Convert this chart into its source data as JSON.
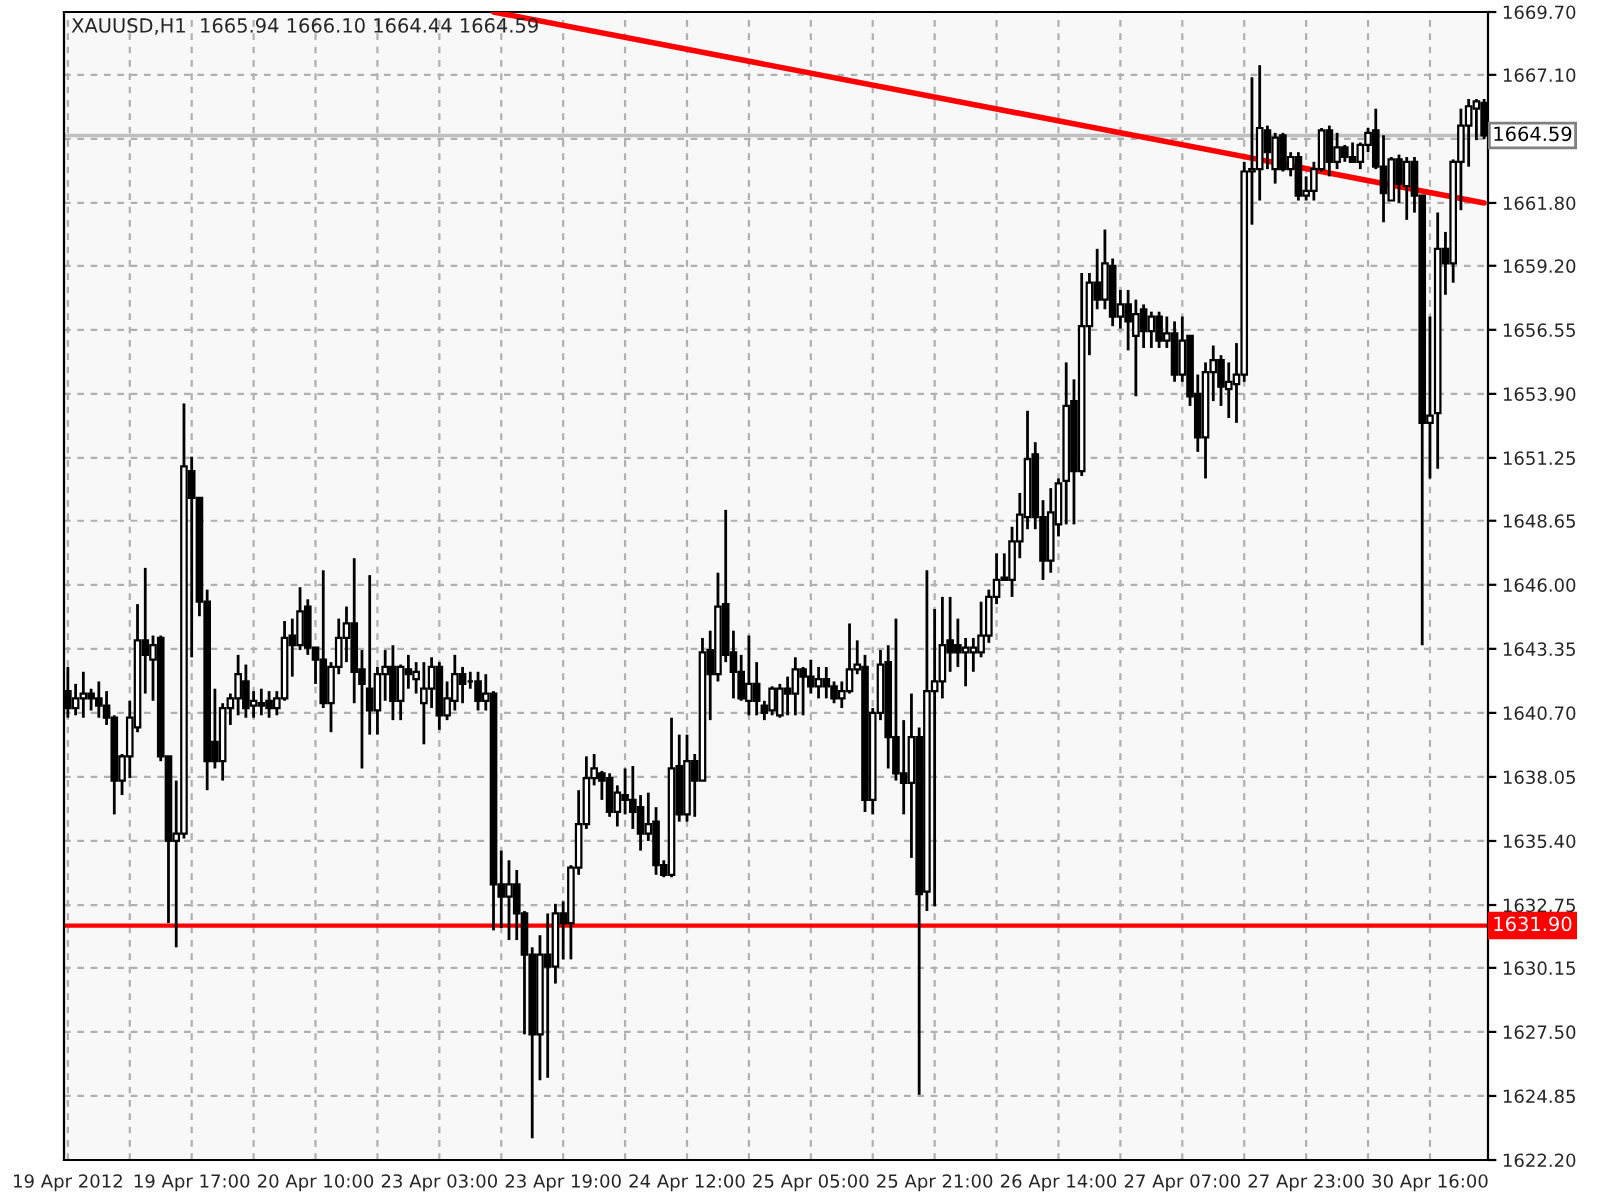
{
  "chart_data": {
    "type": "candlestick",
    "title": "XAUUSD,H1  1665.94 1666.10 1664.44 1664.59",
    "categories": [
      "19 Apr 2012",
      null,
      null,
      null,
      null,
      null,
      null,
      null,
      null,
      null,
      null,
      null,
      null,
      null,
      null,
      null,
      "19 Apr 17:00",
      null,
      null,
      null,
      null,
      null,
      null,
      null,
      null,
      null,
      null,
      null,
      null,
      null,
      null,
      null,
      "20 Apr 10:00",
      null,
      null,
      null,
      null,
      null,
      null,
      null,
      null,
      null,
      null,
      null,
      null,
      null,
      null,
      null,
      "23 Apr 03:00",
      null,
      null,
      null,
      null,
      null,
      null,
      null,
      null,
      null,
      null,
      null,
      null,
      null,
      null,
      null,
      "23 Apr 19:00",
      null,
      null,
      null,
      null,
      null,
      null,
      null,
      null,
      null,
      null,
      null,
      null,
      null,
      null,
      null,
      "24 Apr 12:00",
      null,
      null,
      null,
      null,
      null,
      null,
      null,
      null,
      null,
      null,
      null,
      null,
      null,
      null,
      null,
      "25 Apr 05:00",
      null,
      null,
      null,
      null,
      null,
      null,
      null,
      null,
      null,
      null,
      null,
      null,
      null,
      null,
      null,
      "25 Apr 21:00",
      null,
      null,
      null,
      null,
      null,
      null,
      null,
      null,
      null,
      null,
      null,
      null,
      null,
      null,
      null,
      "26 Apr 14:00",
      null,
      null,
      null,
      null,
      null,
      null,
      null,
      null,
      null,
      null,
      null,
      null,
      null,
      null,
      null,
      "27 Apr 07:00",
      null,
      null,
      null,
      null,
      null,
      null,
      null,
      null,
      null,
      null,
      null,
      null,
      null,
      null,
      null,
      "27 Apr 23:00",
      null,
      null,
      null,
      null,
      null,
      null,
      null,
      null,
      null,
      null,
      null,
      null,
      null,
      null,
      null,
      "30 Apr 16:00",
      null,
      null,
      null,
      null,
      null,
      null,
      null
    ],
    "ohlc": [
      [
        1641.6,
        1642.6,
        1640.5,
        1640.9
      ],
      [
        1640.9,
        1641.9,
        1640.6,
        1641.3
      ],
      [
        1641.3,
        1642.4,
        1640.5,
        1641.5
      ],
      [
        1641.5,
        1641.7,
        1640.8,
        1641.3
      ],
      [
        1641.3,
        1642.0,
        1640.5,
        1641.0
      ],
      [
        1641.0,
        1641.6,
        1640.2,
        1640.5
      ],
      [
        1640.5,
        1640.6,
        1636.5,
        1637.9
      ],
      [
        1637.9,
        1639.0,
        1637.3,
        1638.9
      ],
      [
        1638.9,
        1641.2,
        1638.0,
        1640.5
      ],
      [
        1640.1,
        1645.2,
        1639.9,
        1643.7
      ],
      [
        1643.7,
        1646.7,
        1641.5,
        1643.1
      ],
      [
        1642.9,
        1643.9,
        1641.2,
        1643.5
      ],
      [
        1643.8,
        1643.9,
        1638.7,
        1638.9
      ],
      [
        1638.9,
        1638.9,
        1632.0,
        1635.4
      ],
      [
        1635.4,
        1637.9,
        1631.0,
        1635.7
      ],
      [
        1635.7,
        1653.5,
        1635.5,
        1650.9
      ],
      [
        1650.7,
        1651.3,
        1643.0,
        1649.6
      ],
      [
        1649.6,
        1649.6,
        1644.7,
        1645.3
      ],
      [
        1645.3,
        1645.8,
        1637.5,
        1638.7
      ],
      [
        1639.5,
        1641.7,
        1638.4,
        1638.7
      ],
      [
        1638.7,
        1641.1,
        1637.9,
        1640.9
      ],
      [
        1640.9,
        1641.5,
        1640.2,
        1641.3
      ],
      [
        1641.3,
        1643.1,
        1640.6,
        1642.3
      ],
      [
        1642.0,
        1642.7,
        1640.5,
        1640.9
      ],
      [
        1641.0,
        1641.6,
        1640.5,
        1641.2
      ],
      [
        1641.1,
        1641.7,
        1640.6,
        1641.0
      ],
      [
        1641.2,
        1641.6,
        1640.5,
        1640.9
      ],
      [
        1640.9,
        1641.6,
        1640.6,
        1641.3
      ],
      [
        1641.3,
        1644.5,
        1641.2,
        1643.8
      ],
      [
        1643.9,
        1644.6,
        1642.2,
        1643.5
      ],
      [
        1643.5,
        1645.9,
        1643.3,
        1644.9
      ],
      [
        1645.1,
        1645.4,
        1643.1,
        1643.4
      ],
      [
        1643.4,
        1643.4,
        1641.9,
        1642.9
      ],
      [
        1642.9,
        1646.6,
        1640.9,
        1641.1
      ],
      [
        1641.1,
        1642.8,
        1639.9,
        1642.6
      ],
      [
        1642.6,
        1644.6,
        1642.3,
        1643.8
      ],
      [
        1643.8,
        1645.1,
        1642.8,
        1644.4
      ],
      [
        1644.4,
        1647.1,
        1641.1,
        1642.4
      ],
      [
        1642.5,
        1643.3,
        1638.4,
        1641.9
      ],
      [
        1641.7,
        1646.4,
        1639.8,
        1640.8
      ],
      [
        1640.8,
        1642.6,
        1639.8,
        1642.3
      ],
      [
        1642.3,
        1643.3,
        1641.2,
        1642.6
      ],
      [
        1642.6,
        1643.5,
        1640.4,
        1641.2
      ],
      [
        1641.2,
        1642.7,
        1640.4,
        1642.6
      ],
      [
        1642.5,
        1643.1,
        1641.7,
        1642.3
      ],
      [
        1642.1,
        1642.8,
        1641.5,
        1642.4
      ],
      [
        1641.1,
        1642.8,
        1639.4,
        1641.7
      ],
      [
        1641.7,
        1643.0,
        1640.9,
        1642.6
      ],
      [
        1642.6,
        1642.8,
        1640.0,
        1640.6
      ],
      [
        1640.6,
        1642.0,
        1640.4,
        1641.3
      ],
      [
        1641.2,
        1643.1,
        1640.8,
        1642.3
      ],
      [
        1642.3,
        1642.6,
        1641.1,
        1641.9
      ],
      [
        1642.0,
        1642.4,
        1641.7,
        1642.0
      ],
      [
        1642.0,
        1642.4,
        1640.8,
        1641.2
      ],
      [
        1641.2,
        1642.3,
        1640.8,
        1641.5
      ],
      [
        1641.5,
        1641.6,
        1631.7,
        1633.6
      ],
      [
        1633.6,
        1635.0,
        1631.8,
        1633.1
      ],
      [
        1633.1,
        1634.6,
        1631.3,
        1633.6
      ],
      [
        1633.6,
        1634.2,
        1631.3,
        1632.4
      ],
      [
        1632.4,
        1632.5,
        1627.4,
        1630.7
      ],
      [
        1630.7,
        1631.0,
        1623.1,
        1627.4
      ],
      [
        1627.4,
        1631.5,
        1625.5,
        1630.7
      ],
      [
        1630.7,
        1632.4,
        1625.6,
        1630.2
      ],
      [
        1630.2,
        1632.8,
        1629.5,
        1632.4
      ],
      [
        1632.4,
        1632.9,
        1630.5,
        1632.0
      ],
      [
        1632.0,
        1634.4,
        1630.5,
        1634.3
      ],
      [
        1634.3,
        1637.5,
        1634.0,
        1636.1
      ],
      [
        1636.1,
        1638.9,
        1635.9,
        1638.0
      ],
      [
        1638.0,
        1639.0,
        1637.7,
        1638.4
      ],
      [
        1638.2,
        1638.3,
        1637.1,
        1637.9
      ],
      [
        1638.0,
        1638.2,
        1636.4,
        1636.6
      ],
      [
        1636.6,
        1637.7,
        1636.0,
        1637.4
      ],
      [
        1637.3,
        1638.4,
        1636.5,
        1637.1
      ],
      [
        1637.1,
        1638.5,
        1635.9,
        1636.6
      ],
      [
        1636.8,
        1637.3,
        1635.0,
        1635.7
      ],
      [
        1635.7,
        1637.4,
        1635.4,
        1636.1
      ],
      [
        1636.2,
        1636.8,
        1634.0,
        1634.4
      ],
      [
        1634.4,
        1634.6,
        1633.9,
        1634.0
      ],
      [
        1634.0,
        1640.5,
        1633.9,
        1638.4
      ],
      [
        1638.5,
        1639.8,
        1636.2,
        1636.5
      ],
      [
        1636.5,
        1639.8,
        1636.2,
        1638.7
      ],
      [
        1638.7,
        1639.0,
        1636.4,
        1637.9
      ],
      [
        1637.9,
        1643.8,
        1637.9,
        1643.2
      ],
      [
        1643.3,
        1644.1,
        1640.4,
        1642.3
      ],
      [
        1642.3,
        1646.5,
        1642.0,
        1645.1
      ],
      [
        1645.2,
        1649.1,
        1642.8,
        1643.1
      ],
      [
        1643.2,
        1644.1,
        1641.3,
        1642.4
      ],
      [
        1642.4,
        1643.1,
        1641.2,
        1641.3
      ],
      [
        1641.2,
        1643.9,
        1640.6,
        1641.9
      ],
      [
        1641.9,
        1642.8,
        1640.6,
        1641.2
      ],
      [
        1641.0,
        1641.2,
        1640.4,
        1640.7
      ],
      [
        1640.8,
        1641.8,
        1640.6,
        1641.7
      ],
      [
        1640.6,
        1641.9,
        1640.5,
        1641.7
      ],
      [
        1641.7,
        1642.2,
        1640.6,
        1641.5
      ],
      [
        1641.5,
        1643.0,
        1640.6,
        1642.5
      ],
      [
        1642.5,
        1642.6,
        1640.6,
        1642.2
      ],
      [
        1642.2,
        1642.9,
        1641.5,
        1641.8
      ],
      [
        1641.8,
        1642.6,
        1641.3,
        1642.1
      ],
      [
        1642.1,
        1642.6,
        1641.3,
        1641.8
      ],
      [
        1641.8,
        1642.0,
        1641.1,
        1641.3
      ],
      [
        1641.3,
        1642.0,
        1640.9,
        1641.6
      ],
      [
        1641.6,
        1644.4,
        1641.5,
        1642.5
      ],
      [
        1642.5,
        1643.7,
        1642.3,
        1642.7
      ],
      [
        1642.6,
        1643.1,
        1636.6,
        1637.1
      ],
      [
        1637.1,
        1640.9,
        1636.5,
        1640.7
      ],
      [
        1640.7,
        1643.3,
        1640.4,
        1642.7
      ],
      [
        1642.8,
        1643.5,
        1638.4,
        1639.7
      ],
      [
        1639.7,
        1644.6,
        1637.9,
        1638.2
      ],
      [
        1638.2,
        1640.4,
        1636.5,
        1637.8
      ],
      [
        1637.8,
        1641.5,
        1634.7,
        1639.7
      ],
      [
        1639.7,
        1640.1,
        1624.9,
        1633.2
      ],
      [
        1633.3,
        1646.6,
        1632.5,
        1641.6
      ],
      [
        1641.6,
        1645.0,
        1632.7,
        1642.0
      ],
      [
        1642.0,
        1645.5,
        1641.3,
        1643.5
      ],
      [
        1643.7,
        1645.5,
        1642.4,
        1643.2
      ],
      [
        1643.5,
        1644.6,
        1642.6,
        1643.2
      ],
      [
        1643.2,
        1643.8,
        1641.8,
        1643.4
      ],
      [
        1643.2,
        1643.8,
        1642.4,
        1643.4
      ],
      [
        1643.2,
        1645.3,
        1643.0,
        1643.9
      ],
      [
        1643.9,
        1645.8,
        1643.6,
        1645.5
      ],
      [
        1645.5,
        1647.3,
        1645.2,
        1646.2
      ],
      [
        1646.2,
        1647.3,
        1646.2,
        1646.3
      ],
      [
        1646.2,
        1648.4,
        1645.5,
        1647.8
      ],
      [
        1647.8,
        1649.8,
        1647.1,
        1648.9
      ],
      [
        1648.8,
        1653.2,
        1648.3,
        1651.2
      ],
      [
        1651.4,
        1651.9,
        1648.3,
        1648.8
      ],
      [
        1648.8,
        1649.5,
        1646.2,
        1647.0
      ],
      [
        1647.0,
        1650.0,
        1646.5,
        1649.0
      ],
      [
        1648.5,
        1650.4,
        1648.0,
        1650.2
      ],
      [
        1650.3,
        1655.2,
        1648.5,
        1653.4
      ],
      [
        1653.6,
        1654.5,
        1648.5,
        1650.7
      ],
      [
        1650.7,
        1658.9,
        1650.5,
        1656.7
      ],
      [
        1656.7,
        1658.9,
        1655.5,
        1658.5
      ],
      [
        1658.5,
        1659.9,
        1657.4,
        1657.8
      ],
      [
        1657.8,
        1660.7,
        1657.4,
        1659.3
      ],
      [
        1659.2,
        1659.5,
        1656.7,
        1657.1
      ],
      [
        1657.1,
        1658.2,
        1656.6,
        1657.6
      ],
      [
        1657.6,
        1658.2,
        1655.7,
        1656.9
      ],
      [
        1656.3,
        1657.8,
        1653.8,
        1657.2
      ],
      [
        1657.4,
        1657.6,
        1655.8,
        1656.5
      ],
      [
        1656.5,
        1657.3,
        1655.8,
        1657.1
      ],
      [
        1657.1,
        1657.3,
        1655.8,
        1656.1
      ],
      [
        1656.1,
        1657.1,
        1655.8,
        1656.4
      ],
      [
        1656.4,
        1656.9,
        1654.4,
        1654.7
      ],
      [
        1654.7,
        1657.1,
        1654.4,
        1656.1
      ],
      [
        1656.3,
        1656.3,
        1653.4,
        1653.8
      ],
      [
        1653.9,
        1654.7,
        1651.5,
        1652.1
      ],
      [
        1652.1,
        1655.2,
        1650.4,
        1654.8
      ],
      [
        1654.8,
        1655.9,
        1653.6,
        1655.3
      ],
      [
        1655.3,
        1655.5,
        1653.4,
        1654.2
      ],
      [
        1654.1,
        1655.2,
        1652.9,
        1654.4
      ],
      [
        1654.3,
        1656.0,
        1652.7,
        1654.7
      ],
      [
        1654.7,
        1663.5,
        1654.4,
        1663.1
      ],
      [
        1663.1,
        1667.0,
        1660.9,
        1663.2
      ],
      [
        1663.2,
        1667.5,
        1661.9,
        1664.9
      ],
      [
        1664.8,
        1665.0,
        1663.2,
        1663.9
      ],
      [
        1663.2,
        1664.7,
        1662.6,
        1664.5
      ],
      [
        1664.6,
        1664.7,
        1663.1,
        1663.2
      ],
      [
        1663.2,
        1663.9,
        1662.9,
        1663.7
      ],
      [
        1663.7,
        1663.9,
        1661.9,
        1662.1
      ],
      [
        1662.1,
        1662.9,
        1661.9,
        1662.3
      ],
      [
        1662.3,
        1663.5,
        1661.9,
        1663.2
      ],
      [
        1663.2,
        1664.9,
        1663.1,
        1664.8
      ],
      [
        1664.8,
        1665.0,
        1662.9,
        1663.5
      ],
      [
        1663.5,
        1664.7,
        1663.2,
        1664.1
      ],
      [
        1664.1,
        1664.2,
        1663.5,
        1663.7
      ],
      [
        1663.7,
        1664.3,
        1663.5,
        1663.5
      ],
      [
        1663.5,
        1664.3,
        1663.2,
        1664.2
      ],
      [
        1664.2,
        1664.9,
        1663.9,
        1664.7
      ],
      [
        1664.8,
        1665.7,
        1663.2,
        1663.3
      ],
      [
        1663.3,
        1664.6,
        1661.0,
        1662.2
      ],
      [
        1661.9,
        1663.7,
        1661.9,
        1663.6
      ],
      [
        1663.6,
        1663.8,
        1661.8,
        1662.6
      ],
      [
        1662.5,
        1663.7,
        1661.1,
        1663.5
      ],
      [
        1663.5,
        1663.7,
        1661.4,
        1662.1
      ],
      [
        1662.1,
        1662.1,
        1643.5,
        1652.7
      ],
      [
        1652.7,
        1657.1,
        1650.4,
        1653.0
      ],
      [
        1653.1,
        1661.4,
        1650.8,
        1659.9
      ],
      [
        1659.9,
        1660.6,
        1658.0,
        1659.3
      ],
      [
        1659.3,
        1663.6,
        1658.5,
        1663.5
      ],
      [
        1663.5,
        1665.7,
        1661.5,
        1665.0
      ],
      [
        1665.0,
        1666.1,
        1663.3,
        1665.8
      ],
      [
        1665.7,
        1666.1,
        1664.4,
        1666.0
      ],
      [
        1665.94,
        1666.1,
        1664.44,
        1664.59
      ]
    ],
    "series": [
      {
        "type": "line",
        "color": "#ff0000",
        "values": [
          null,
          null,
          null,
          null,
          null,
          null,
          null,
          null,
          null,
          null,
          null,
          null,
          null,
          null,
          null,
          null,
          null,
          null,
          null,
          null,
          null,
          null,
          null,
          null,
          null,
          null,
          null,
          null,
          null,
          null,
          null,
          null,
          null,
          null,
          null,
          null,
          null,
          null,
          null,
          null,
          null,
          null,
          null,
          null,
          null,
          null,
          null,
          null,
          null,
          null,
          null,
          null,
          null,
          null,
          null,
          1669.7,
          null,
          null,
          null,
          null,
          null,
          null,
          null,
          null,
          null,
          null,
          null,
          null,
          null,
          null,
          null,
          null,
          null,
          null,
          null,
          null,
          null,
          null,
          null,
          null,
          null,
          null,
          null,
          null,
          null,
          null,
          null,
          null,
          null,
          null,
          null,
          null,
          null,
          null,
          null,
          null,
          null,
          null,
          null,
          null,
          null,
          null,
          null,
          null,
          null,
          null,
          null,
          null,
          null,
          null,
          null,
          null,
          null,
          null,
          null,
          null,
          null,
          null,
          null,
          null,
          null,
          null,
          null,
          null,
          null,
          null,
          null,
          null,
          null,
          null,
          null,
          null,
          null,
          null,
          null,
          null,
          null,
          null,
          null,
          null,
          null,
          null,
          null,
          null,
          null,
          null,
          null,
          null,
          null,
          null,
          null,
          null,
          null,
          null,
          null,
          null,
          null,
          null,
          null,
          null,
          null,
          null,
          null,
          null,
          null,
          null,
          null,
          null,
          null,
          null,
          null,
          null,
          null,
          null,
          null,
          null,
          null,
          null,
          null,
          null,
          null,
          null,
          null,
          1661.8
        ]
      }
    ],
    "ylim": [
      1622.2,
      1669.7
    ],
    "yticks": [
      {
        "value": 1622.2,
        "label": "1622.20"
      },
      {
        "value": 1624.85,
        "label": "1624.85"
      },
      {
        "value": 1627.5,
        "label": "1627.50"
      },
      {
        "value": 1630.15,
        "label": "1630.15"
      },
      {
        "value": 1632.75,
        "label": "1632.75"
      },
      {
        "value": 1635.4,
        "label": "1635.40"
      },
      {
        "value": 1638.05,
        "label": "1638.05"
      },
      {
        "value": 1640.7,
        "label": "1640.70"
      },
      {
        "value": 1643.35,
        "label": "1643.35"
      },
      {
        "value": 1646.0,
        "label": "1646.00"
      },
      {
        "value": 1648.65,
        "label": "1648.65"
      },
      {
        "value": 1651.25,
        "label": "1651.25"
      },
      {
        "value": 1653.9,
        "label": "1653.90"
      },
      {
        "value": 1656.55,
        "label": "1656.55"
      },
      {
        "value": 1659.2,
        "label": "1659.20"
      },
      {
        "value": 1661.8,
        "label": "1661.80"
      },
      {
        "value": 1664.45,
        "label": null
      },
      {
        "value": 1667.1,
        "label": "1667.10"
      },
      {
        "value": 1669.7,
        "label": "1669.70"
      }
    ],
    "ref_lines": [
      {
        "axis": "y",
        "value": 1631.9,
        "label": "1631.90",
        "color": "#ff0000",
        "line_style": "solid"
      },
      {
        "axis": "y",
        "value": 1664.59,
        "label": "1664.59",
        "color": "#c0c0c0",
        "line_style": "solid"
      }
    ],
    "grid": true
  }
}
